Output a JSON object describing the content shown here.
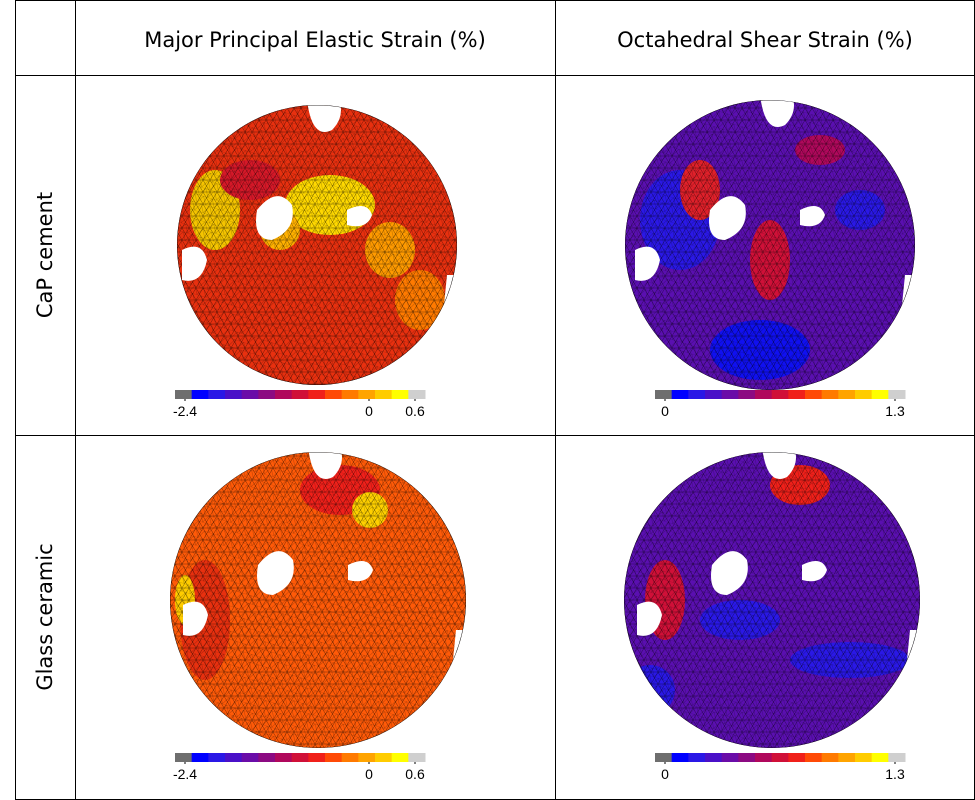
{
  "columns": [
    "Major Principal Elastic Strain (%)",
    "Octahedral Shear Strain (%)"
  ],
  "colorbar_colors": [
    "#6e6e6e",
    "#0000ff",
    "#2a18e6",
    "#4a10c8",
    "#6a0ca8",
    "#8c0a82",
    "#b0085c",
    "#d01038",
    "#f0201a",
    "#ff4a06",
    "#ff7a00",
    "#ffa400",
    "#ffcc00",
    "#ffff00",
    "#cfcfcf"
  ],
  "rows": [
    {
      "label": "CaP cement",
      "colorbars": [
        {
          "lim": [
            -2.4,
            0.6
          ],
          "ticks": [
            -2.4,
            0,
            0.6
          ]
        },
        {
          "lim": [
            0,
            1.3
          ],
          "ticks": [
            0,
            1.3
          ]
        }
      ]
    },
    {
      "label": "Glass ceramic",
      "colorbars": [
        {
          "lim": [
            -2.4,
            0.6
          ],
          "ticks": [
            -2.4,
            0,
            0.6
          ]
        },
        {
          "lim": [
            0,
            1.3
          ],
          "ticks": [
            0,
            1.3
          ]
        }
      ]
    }
  ]
}
